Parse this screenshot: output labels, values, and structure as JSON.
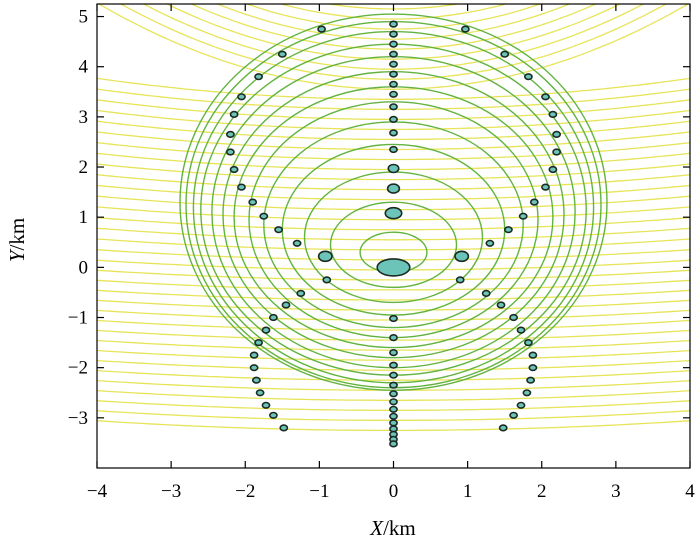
{
  "chart_data": {
    "type": "scatter",
    "xlabel": {
      "var": "X",
      "unit": "/km"
    },
    "ylabel": {
      "var": "Y",
      "unit": "/km"
    },
    "xlim": [
      -4,
      4
    ],
    "ylim": [
      -4,
      5.25
    ],
    "xticks": [
      "−4",
      "−3",
      "−2",
      "−1",
      "0",
      "1",
      "2",
      "3",
      "4"
    ],
    "xtick_values": [
      -4,
      -3,
      -2,
      -1,
      0,
      1,
      2,
      3,
      4
    ],
    "yticks": [
      "−3",
      "−2",
      "−1",
      "0",
      "1",
      "2",
      "3",
      "4",
      "5"
    ],
    "ytick_values": [
      -3,
      -2,
      -1,
      0,
      1,
      2,
      3,
      4,
      5
    ],
    "grid": false,
    "colors": {
      "wavefront": "#63b341",
      "ray": "#e7e45a",
      "marker_fill": "#6cc4b8",
      "marker_edge": "#1b2a22",
      "frame": "#000000"
    },
    "source_center": [
      0,
      0
    ],
    "wavefront_circles": [
      {
        "cy": 0.3,
        "rx": 0.45,
        "ry": 0.4
      },
      {
        "cy": 0.45,
        "rx": 0.85,
        "ry": 0.85
      },
      {
        "cy": 0.6,
        "rx": 1.2,
        "ry": 1.3
      },
      {
        "cy": 0.75,
        "rx": 1.5,
        "ry": 1.7
      },
      {
        "cy": 0.85,
        "rx": 1.75,
        "ry": 2.05
      },
      {
        "cy": 0.95,
        "rx": 1.95,
        "ry": 2.35
      },
      {
        "cy": 1.0,
        "rx": 2.15,
        "ry": 2.6
      },
      {
        "cy": 1.05,
        "rx": 2.3,
        "ry": 2.85
      },
      {
        "cy": 1.1,
        "rx": 2.45,
        "ry": 3.1
      },
      {
        "cy": 1.15,
        "rx": 2.6,
        "ry": 3.3
      },
      {
        "cy": 1.2,
        "rx": 2.7,
        "ry": 3.5
      },
      {
        "cy": 1.25,
        "rx": 2.8,
        "ry": 3.65
      },
      {
        "cy": 1.3,
        "rx": 2.88,
        "ry": 3.75
      }
    ],
    "ray_offsets": [
      -3.25,
      -3.05,
      -2.85,
      -2.65,
      -2.45,
      -2.25,
      -2.05,
      -1.85,
      -1.65,
      -1.45,
      -1.25,
      -1.05,
      -0.85,
      -0.65,
      -0.45,
      -0.25,
      -0.05,
      0.15,
      0.35,
      0.55,
      0.75,
      0.95,
      1.15,
      1.35,
      1.55,
      1.75,
      1.95,
      2.15,
      2.35,
      2.55,
      2.75,
      2.95,
      3.15,
      3.35,
      3.55,
      3.75,
      3.95,
      4.15,
      4.35,
      4.55,
      4.75,
      4.95,
      5.15
    ],
    "large_markers": [
      {
        "x": 0,
        "y": 0,
        "rx": 0.22,
        "ry": 0.17
      },
      {
        "x": 0,
        "y": 1.08,
        "rx": 0.11,
        "ry": 0.11
      },
      {
        "x": -0.92,
        "y": 0.22,
        "rx": 0.09,
        "ry": 0.1
      },
      {
        "x": 0.92,
        "y": 0.22,
        "rx": 0.09,
        "ry": 0.1
      },
      {
        "x": 0,
        "y": 1.57,
        "rx": 0.08,
        "ry": 0.09
      },
      {
        "x": 0,
        "y": 1.97,
        "rx": 0.07,
        "ry": 0.08
      }
    ],
    "points": [
      {
        "x": 0,
        "y": 4.85
      },
      {
        "x": 0,
        "y": 4.65
      },
      {
        "x": 0,
        "y": 4.45
      },
      {
        "x": 0,
        "y": 4.25
      },
      {
        "x": 0,
        "y": 4.05
      },
      {
        "x": 0,
        "y": 3.85
      },
      {
        "x": 0,
        "y": 3.65
      },
      {
        "x": 0,
        "y": 3.45
      },
      {
        "x": 0,
        "y": 3.2
      },
      {
        "x": 0,
        "y": 2.95
      },
      {
        "x": 0,
        "y": 2.68
      },
      {
        "x": 0,
        "y": 2.35
      },
      {
        "x": 0,
        "y": -1.02
      },
      {
        "x": 0,
        "y": -1.4
      },
      {
        "x": 0,
        "y": -1.7
      },
      {
        "x": 0,
        "y": -1.95
      },
      {
        "x": 0,
        "y": -2.15
      },
      {
        "x": 0,
        "y": -2.35
      },
      {
        "x": 0,
        "y": -2.52
      },
      {
        "x": 0,
        "y": -2.68
      },
      {
        "x": 0,
        "y": -2.83
      },
      {
        "x": 0,
        "y": -2.97
      },
      {
        "x": 0,
        "y": -3.1
      },
      {
        "x": 0,
        "y": -3.22
      },
      {
        "x": 0,
        "y": -3.33
      },
      {
        "x": 0,
        "y": -3.43
      },
      {
        "x": 0,
        "y": -3.52
      },
      {
        "x": -0.97,
        "y": 4.75
      },
      {
        "x": -1.5,
        "y": 4.25
      },
      {
        "x": -1.82,
        "y": 3.8
      },
      {
        "x": -2.05,
        "y": 3.4
      },
      {
        "x": -2.15,
        "y": 3.05
      },
      {
        "x": -2.2,
        "y": 2.65
      },
      {
        "x": -2.2,
        "y": 2.3
      },
      {
        "x": -2.15,
        "y": 1.95
      },
      {
        "x": -2.05,
        "y": 1.6
      },
      {
        "x": -1.9,
        "y": 1.3
      },
      {
        "x": -1.75,
        "y": 1.02
      },
      {
        "x": -1.55,
        "y": 0.75
      },
      {
        "x": -1.3,
        "y": 0.48
      },
      {
        "x": -0.9,
        "y": -0.25
      },
      {
        "x": -1.25,
        "y": -0.52
      },
      {
        "x": -1.45,
        "y": -0.75
      },
      {
        "x": -1.62,
        "y": -1.0
      },
      {
        "x": -1.72,
        "y": -1.25
      },
      {
        "x": -1.82,
        "y": -1.5
      },
      {
        "x": -1.88,
        "y": -1.75
      },
      {
        "x": -1.88,
        "y": -2.0
      },
      {
        "x": -1.85,
        "y": -2.25
      },
      {
        "x": -1.8,
        "y": -2.5
      },
      {
        "x": -1.72,
        "y": -2.75
      },
      {
        "x": -1.62,
        "y": -2.95
      },
      {
        "x": -1.48,
        "y": -3.2
      },
      {
        "x": 0.97,
        "y": 4.75
      },
      {
        "x": 1.5,
        "y": 4.25
      },
      {
        "x": 1.82,
        "y": 3.8
      },
      {
        "x": 2.05,
        "y": 3.4
      },
      {
        "x": 2.15,
        "y": 3.05
      },
      {
        "x": 2.2,
        "y": 2.65
      },
      {
        "x": 2.2,
        "y": 2.3
      },
      {
        "x": 2.15,
        "y": 1.95
      },
      {
        "x": 2.05,
        "y": 1.6
      },
      {
        "x": 1.9,
        "y": 1.3
      },
      {
        "x": 1.75,
        "y": 1.02
      },
      {
        "x": 1.55,
        "y": 0.75
      },
      {
        "x": 1.3,
        "y": 0.48
      },
      {
        "x": 0.9,
        "y": -0.25
      },
      {
        "x": 1.25,
        "y": -0.52
      },
      {
        "x": 1.45,
        "y": -0.75
      },
      {
        "x": 1.62,
        "y": -1.0
      },
      {
        "x": 1.72,
        "y": -1.25
      },
      {
        "x": 1.82,
        "y": -1.5
      },
      {
        "x": 1.88,
        "y": -1.75
      },
      {
        "x": 1.88,
        "y": -2.0
      },
      {
        "x": 1.85,
        "y": -2.25
      },
      {
        "x": 1.8,
        "y": -2.5
      },
      {
        "x": 1.72,
        "y": -2.75
      },
      {
        "x": 1.62,
        "y": -2.95
      },
      {
        "x": 1.48,
        "y": -3.2
      }
    ]
  }
}
